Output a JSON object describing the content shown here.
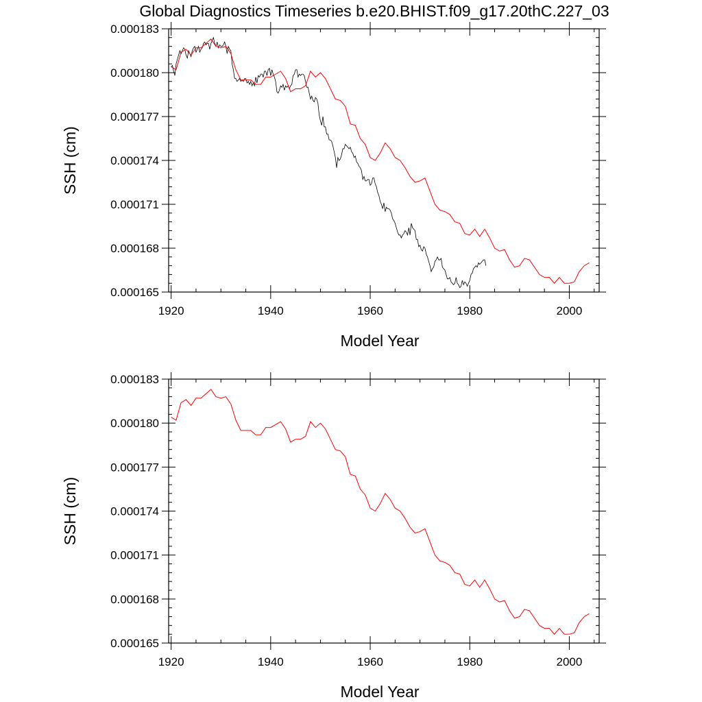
{
  "colors": {
    "background": "#ffffff",
    "axes": "#000000",
    "monthly_series": "#000000",
    "annual_series": "#ff0000"
  },
  "chart_data": [
    {
      "type": "line",
      "title": "Global Diagnostics Timeseries b.e20.BHIST.f09_g17.20thC.227_03",
      "xlabel": "Model Year",
      "ylabel": "SSH (cm)",
      "xlim": [
        1919.5,
        2006
      ],
      "ylim": [
        0.000165,
        0.000183
      ],
      "xticks": [
        1920,
        1940,
        1960,
        1980,
        2000
      ],
      "xtick_labels": [
        "1920",
        "1940",
        "1960",
        "1980",
        "2000"
      ],
      "yticks": [
        0.000165,
        0.000168,
        0.000171,
        0.000174,
        0.000177,
        0.00018,
        0.000183
      ],
      "ytick_labels": [
        "0.000165",
        "0.000168",
        "0.000171",
        "0.000174",
        "0.000177",
        "0.000180",
        "0.000183"
      ],
      "series": [
        {
          "name": "monthly",
          "color": "#000000",
          "x_start": 1920,
          "step": 0.25,
          "values": [
            0.0001804,
            0.0001805,
            0.0001801,
            0.0001798,
            0.0001806,
            0.0001809,
            0.0001812,
            0.0001815,
            0.0001813,
            0.0001815,
            0.0001817,
            0.0001816,
            0.0001812,
            0.000181,
            0.0001815,
            0.0001813,
            0.0001811,
            0.0001815,
            0.0001817,
            0.0001818,
            0.0001814,
            0.0001816,
            0.0001818,
            0.0001814,
            0.0001816,
            0.0001817,
            0.000182,
            0.0001821,
            0.0001819,
            0.000182,
            0.000182,
            0.0001816,
            0.000182,
            0.0001822,
            0.0001824,
            0.000182,
            0.0001818,
            0.0001821,
            0.0001817,
            0.0001819,
            0.0001818,
            0.0001818,
            0.0001819,
            0.0001821,
            0.0001818,
            0.0001813,
            0.0001818,
            0.0001816,
            0.0001815,
            0.0001806,
            0.0001802,
            0.0001796,
            0.0001796,
            0.0001794,
            0.0001795,
            0.0001796,
            0.0001794,
            0.0001795,
            0.0001794,
            0.0001796,
            0.0001796,
            0.0001793,
            0.0001794,
            0.0001792,
            0.0001794,
            0.0001791,
            0.0001793,
            0.0001791,
            0.0001797,
            0.0001793,
            0.0001798,
            0.0001797,
            0.0001799,
            0.0001799,
            0.0001797,
            0.0001801,
            0.0001801,
            0.0001798,
            0.0001802,
            0.0001803,
            0.0001798,
            0.0001802,
            0.0001799,
            0.0001797,
            0.0001794,
            0.0001787,
            0.0001786,
            0.0001788,
            0.0001791,
            0.000179,
            0.0001792,
            0.0001788,
            0.0001791,
            0.000179,
            0.0001791,
            0.0001789,
            0.0001791,
            0.0001792,
            0.0001798,
            0.0001799,
            0.0001802,
            0.0001802,
            0.0001797,
            0.0001799,
            0.0001798,
            0.0001799,
            0.0001799,
            0.0001798,
            0.0001794,
            0.000179,
            0.000179,
            0.0001786,
            0.0001782,
            0.0001784,
            0.0001781,
            0.000178,
            0.0001783,
            0.0001782,
            0.0001779,
            0.0001771,
            0.0001767,
            0.0001764,
            0.000177,
            0.0001763,
            0.0001763,
            0.0001758,
            0.0001758,
            0.0001754,
            0.0001754,
            0.0001753,
            0.000175,
            0.0001746,
            0.0001742,
            0.0001735,
            0.0001742,
            0.000174,
            0.0001741,
            0.0001744,
            0.0001748,
            0.0001748,
            0.0001751,
            0.000175,
            0.0001749,
            0.0001748,
            0.0001749,
            0.0001746,
            0.0001745,
            0.0001742,
            0.0001743,
            0.0001739,
            0.0001738,
            0.0001736,
            0.0001735,
            0.0001733,
            0.0001727,
            0.0001729,
            0.0001726,
            0.0001726,
            0.0001727,
            0.0001727,
            0.0001723,
            0.0001724,
            0.0001728,
            0.0001728,
            0.0001724,
            0.0001722,
            0.0001718,
            0.0001716,
            0.0001712,
            0.000171,
            0.0001707,
            0.0001711,
            0.0001705,
            0.0001708,
            0.0001707,
            0.0001707,
            0.0001706,
            0.0001704,
            0.00017,
            0.0001699,
            0.0001697,
            0.0001694,
            0.0001691,
            0.0001689,
            0.0001689,
            0.0001687,
            0.0001689,
            0.000169,
            0.0001692,
            0.0001691,
            0.0001689,
            0.0001694,
            0.0001689,
            0.0001697,
            0.0001694,
            0.0001693,
            0.0001692,
            0.0001686,
            0.0001686,
            0.0001681,
            0.0001682,
            0.0001679,
            0.0001678,
            0.0001681,
            0.000168,
            0.0001676,
            0.0001674,
            0.0001671,
            0.0001668,
            0.0001664,
            0.0001666,
            0.0001667,
            0.0001671,
            0.0001672,
            0.0001674,
            0.0001672,
            0.0001672,
            0.0001673,
            0.0001667,
            0.0001666,
            0.0001665,
            0.0001662,
            0.0001659,
            0.0001659,
            0.000166,
            0.0001657,
            0.0001656,
            0.0001655,
            0.0001656,
            0.000166,
            0.0001656,
            0.0001655,
            0.0001653,
            0.0001654,
            0.0001658,
            0.0001655,
            0.0001657,
            0.0001656,
            0.0001654,
            0.0001656,
            0.0001658,
            0.0001662,
            0.0001663,
            0.0001666,
            0.0001667,
            0.0001668,
            0.0001667,
            0.000167,
            0.0001669,
            0.000167,
            0.0001671,
            0.0001672,
            0.0001672,
            0.0001668
          ]
        },
        {
          "name": "annual",
          "color": "#ff0000",
          "x_start": 1920,
          "step": 1,
          "values": [
            0.0001804,
            0.0001802,
            0.0001814,
            0.0001816,
            0.0001812,
            0.0001817,
            0.0001817,
            0.000182,
            0.0001823,
            0.0001818,
            0.0001817,
            0.0001818,
            0.0001813,
            0.0001802,
            0.0001795,
            0.0001795,
            0.0001795,
            0.0001792,
            0.0001792,
            0.0001797,
            0.0001797,
            0.0001799,
            0.0001801,
            0.0001796,
            0.0001787,
            0.0001789,
            0.0001789,
            0.0001791,
            0.0001801,
            0.0001797,
            0.00018,
            0.0001796,
            0.0001789,
            0.0001782,
            0.0001781,
            0.0001777,
            0.0001765,
            0.0001764,
            0.0001755,
            0.0001751,
            0.0001742,
            0.000174,
            0.0001745,
            0.0001752,
            0.0001748,
            0.0001742,
            0.000174,
            0.0001735,
            0.0001729,
            0.0001725,
            0.0001726,
            0.0001728,
            0.0001719,
            0.000171,
            0.0001706,
            0.0001705,
            0.0001703,
            0.0001698,
            0.0001697,
            0.000169,
            0.0001689,
            0.0001693,
            0.0001688,
            0.0001693,
            0.0001687,
            0.000168,
            0.0001678,
            0.0001679,
            0.0001672,
            0.0001667,
            0.0001668,
            0.0001673,
            0.0001672,
            0.0001667,
            0.0001662,
            0.000166,
            0.000166,
            0.0001656,
            0.000166,
            0.0001656,
            0.0001656,
            0.0001657,
            0.0001664,
            0.0001668,
            0.000167
          ]
        }
      ]
    },
    {
      "type": "line",
      "title": "",
      "xlabel": "Model Year",
      "ylabel": "SSH (cm)",
      "xlim": [
        1919.5,
        2006
      ],
      "ylim": [
        0.000165,
        0.000183
      ],
      "xticks": [
        1920,
        1940,
        1960,
        1980,
        2000
      ],
      "xtick_labels": [
        "1920",
        "1940",
        "1960",
        "1980",
        "2000"
      ],
      "yticks": [
        0.000165,
        0.000168,
        0.000171,
        0.000174,
        0.000177,
        0.00018,
        0.000183
      ],
      "ytick_labels": [
        "0.000165",
        "0.000168",
        "0.000171",
        "0.000174",
        "0.000177",
        "0.000180",
        "0.000183"
      ],
      "series": [
        {
          "name": "annual",
          "color": "#ff0000",
          "x_start": 1920,
          "step": 1,
          "values": [
            0.0001804,
            0.0001802,
            0.0001814,
            0.0001816,
            0.0001812,
            0.0001817,
            0.0001817,
            0.000182,
            0.0001823,
            0.0001818,
            0.0001817,
            0.0001818,
            0.0001813,
            0.0001802,
            0.0001795,
            0.0001795,
            0.0001795,
            0.0001792,
            0.0001792,
            0.0001797,
            0.0001797,
            0.0001799,
            0.0001801,
            0.0001796,
            0.0001787,
            0.0001789,
            0.0001789,
            0.0001791,
            0.0001801,
            0.0001797,
            0.00018,
            0.0001796,
            0.0001789,
            0.0001782,
            0.0001781,
            0.0001777,
            0.0001765,
            0.0001764,
            0.0001755,
            0.0001751,
            0.0001742,
            0.000174,
            0.0001745,
            0.0001752,
            0.0001748,
            0.0001742,
            0.000174,
            0.0001735,
            0.0001729,
            0.0001725,
            0.0001726,
            0.0001728,
            0.0001719,
            0.000171,
            0.0001706,
            0.0001705,
            0.0001703,
            0.0001698,
            0.0001697,
            0.000169,
            0.0001689,
            0.0001693,
            0.0001688,
            0.0001693,
            0.0001687,
            0.000168,
            0.0001678,
            0.0001679,
            0.0001672,
            0.0001667,
            0.0001668,
            0.0001673,
            0.0001672,
            0.0001667,
            0.0001662,
            0.000166,
            0.000166,
            0.0001656,
            0.000166,
            0.0001656,
            0.0001656,
            0.0001657,
            0.0001664,
            0.0001668,
            0.000167
          ]
        }
      ]
    }
  ]
}
